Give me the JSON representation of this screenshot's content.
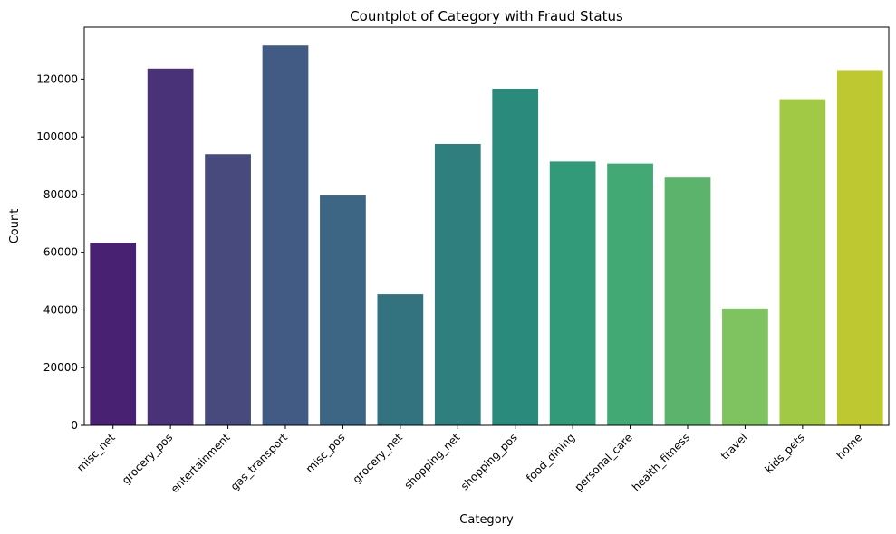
{
  "chart_data": {
    "type": "bar",
    "title": "Countplot of Category with Fraud Status",
    "xlabel": "Category",
    "ylabel": "Count",
    "categories": [
      "misc_net",
      "grocery_pos",
      "entertainment",
      "gas_transport",
      "misc_pos",
      "grocery_net",
      "shopping_net",
      "shopping_pos",
      "food_dining",
      "personal_care",
      "health_fitness",
      "travel",
      "kids_pets",
      "home"
    ],
    "values": [
      63287,
      123638,
      94014,
      131659,
      79655,
      45452,
      97543,
      116672,
      91461,
      90758,
      85879,
      40507,
      113035,
      123115
    ],
    "colors": [
      "#482173",
      "#4a3279",
      "#484a7d",
      "#425b84",
      "#3d6684",
      "#33737f",
      "#2e7f7d",
      "#2a8b7d",
      "#329a79",
      "#42a874",
      "#5cb36b",
      "#7fc260",
      "#a1c945",
      "#bec831"
    ],
    "ylim": [
      0,
      138000
    ],
    "yticks": [
      0,
      20000,
      40000,
      60000,
      80000,
      100000,
      120000
    ],
    "grid": false,
    "legend": "none"
  }
}
